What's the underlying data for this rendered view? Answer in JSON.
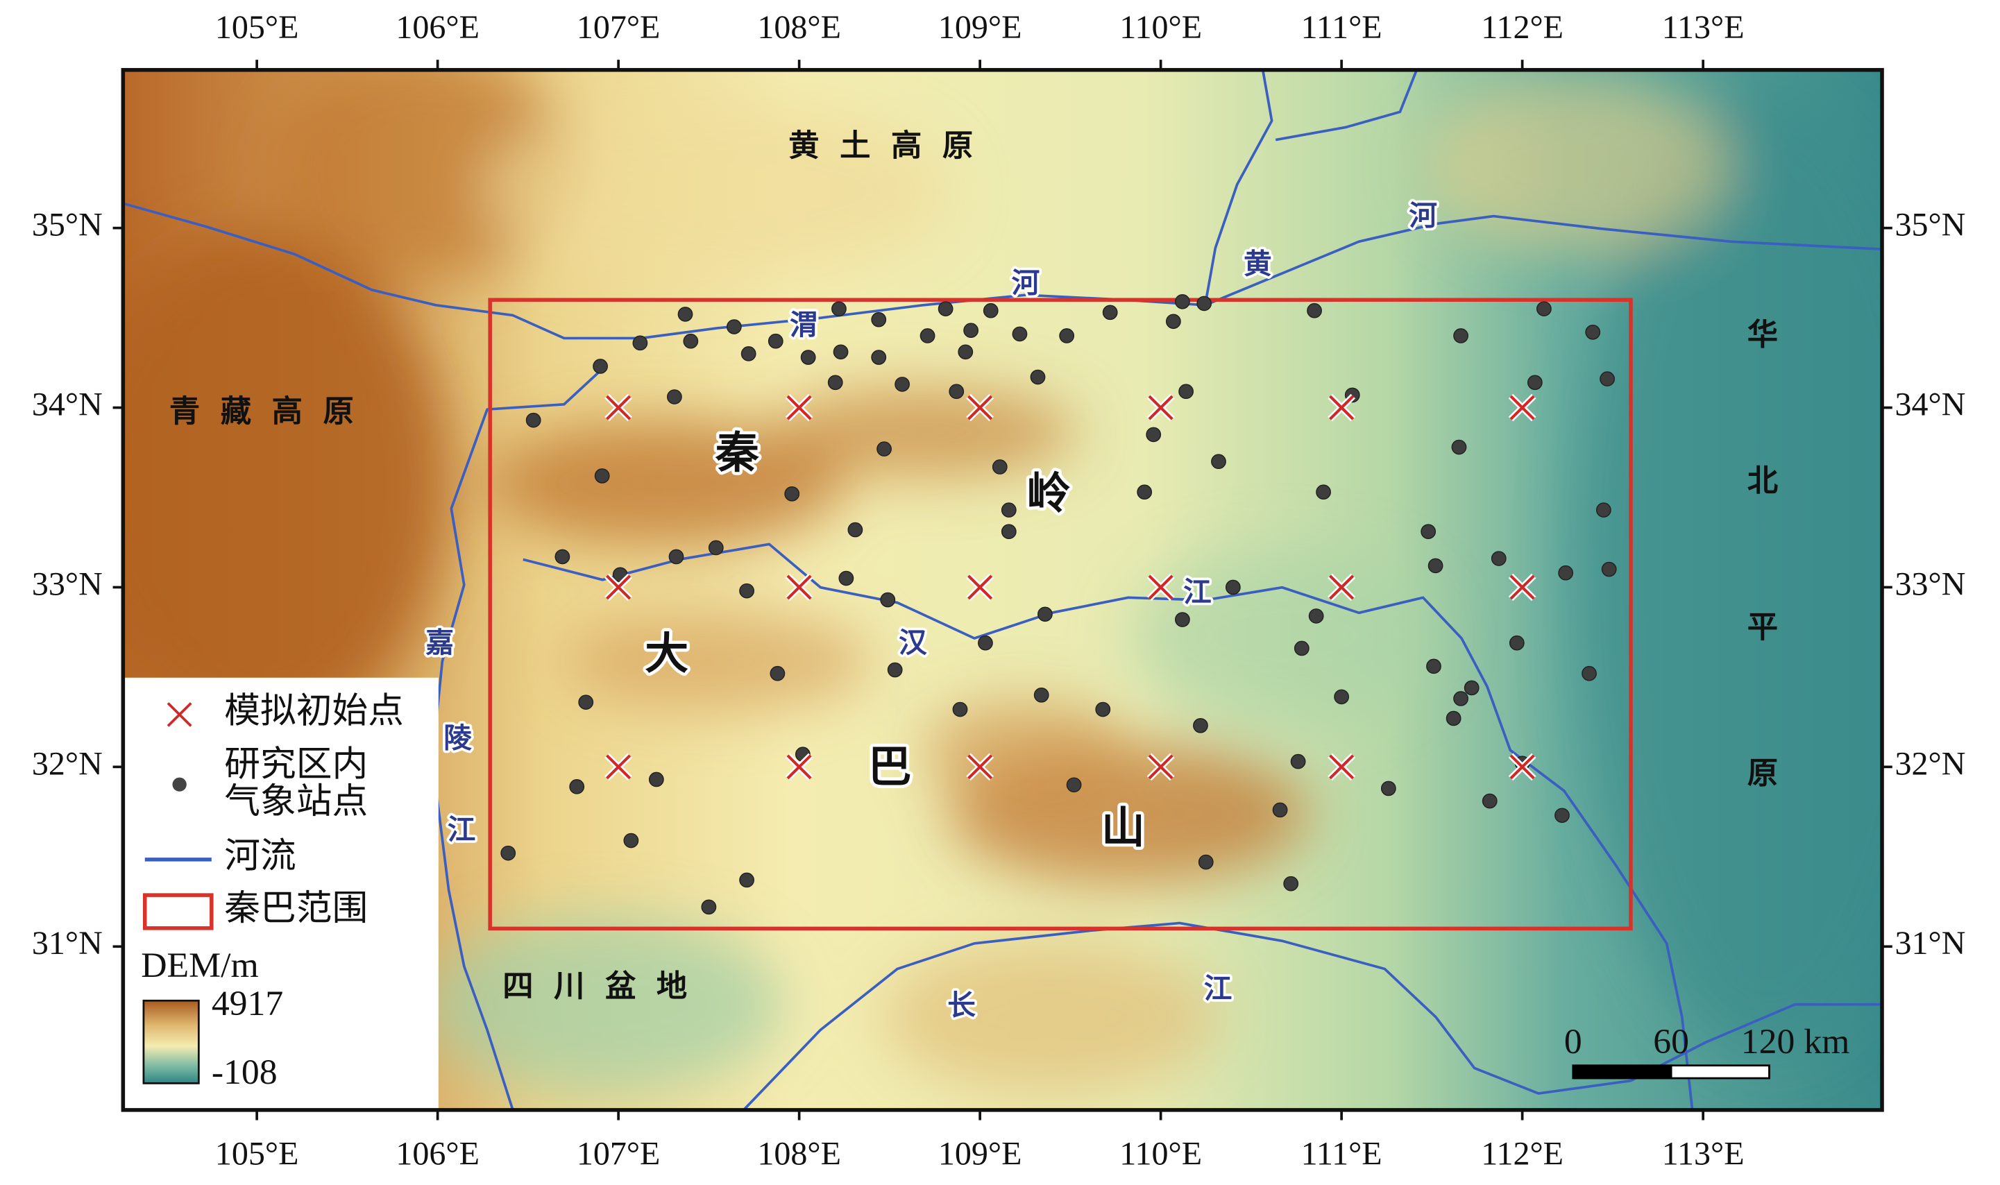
{
  "map": {
    "xlim": [
      104.26,
      113.99
    ],
    "ylim": [
      30.09,
      35.88
    ],
    "xticks": [
      {
        "value": 105,
        "label": "105°E"
      },
      {
        "value": 106,
        "label": "106°E"
      },
      {
        "value": 107,
        "label": "107°E"
      },
      {
        "value": 108,
        "label": "108°E"
      },
      {
        "value": 109,
        "label": "109°E"
      },
      {
        "value": 110,
        "label": "110°E"
      },
      {
        "value": 111,
        "label": "111°E"
      },
      {
        "value": 112,
        "label": "112°E"
      },
      {
        "value": 113,
        "label": "113°E"
      }
    ],
    "yticks": [
      {
        "value": 31,
        "label": "31°N"
      },
      {
        "value": 32,
        "label": "32°N"
      },
      {
        "value": 33,
        "label": "33°N"
      },
      {
        "value": 34,
        "label": "34°N"
      },
      {
        "value": 35,
        "label": "35°N"
      }
    ],
    "qinba_extent": {
      "west": 106.29,
      "east": 112.6,
      "south": 31.1,
      "north": 34.6
    },
    "sim_points": [
      [
        107,
        34
      ],
      [
        108,
        34
      ],
      [
        109,
        34
      ],
      [
        110,
        34
      ],
      [
        111,
        34
      ],
      [
        112,
        34
      ],
      [
        107,
        33
      ],
      [
        108,
        33
      ],
      [
        109,
        33
      ],
      [
        110,
        33
      ],
      [
        111,
        33
      ],
      [
        112,
        33
      ],
      [
        107,
        32
      ],
      [
        108,
        32
      ],
      [
        109,
        32
      ],
      [
        110,
        32
      ],
      [
        111,
        32
      ],
      [
        112,
        32
      ]
    ],
    "stations": [
      [
        107.37,
        34.52
      ],
      [
        107.64,
        34.45
      ],
      [
        108.22,
        34.55
      ],
      [
        108.44,
        34.49
      ],
      [
        108.81,
        34.55
      ],
      [
        109.06,
        34.54
      ],
      [
        109.72,
        34.53
      ],
      [
        110.12,
        34.59
      ],
      [
        110.24,
        34.58
      ],
      [
        110.85,
        34.54
      ],
      [
        112.12,
        34.55
      ],
      [
        112.39,
        34.42
      ],
      [
        112.47,
        34.16
      ],
      [
        111.66,
        34.4
      ],
      [
        112.07,
        34.14
      ],
      [
        111.06,
        34.07
      ],
      [
        110.14,
        34.09
      ],
      [
        110.07,
        34.48
      ],
      [
        109.48,
        34.4
      ],
      [
        109.22,
        34.41
      ],
      [
        108.92,
        34.31
      ],
      [
        108.95,
        34.43
      ],
      [
        108.71,
        34.4
      ],
      [
        108.44,
        34.28
      ],
      [
        108.23,
        34.31
      ],
      [
        108.05,
        34.28
      ],
      [
        107.87,
        34.37
      ],
      [
        107.72,
        34.3
      ],
      [
        107.4,
        34.37
      ],
      [
        107.12,
        34.36
      ],
      [
        106.9,
        34.23
      ],
      [
        107.31,
        34.06
      ],
      [
        106.53,
        33.93
      ],
      [
        108.2,
        34.14
      ],
      [
        108.57,
        34.13
      ],
      [
        108.87,
        34.09
      ],
      [
        109.32,
        34.17
      ],
      [
        111.65,
        33.78
      ],
      [
        109.96,
        33.85
      ],
      [
        110.32,
        33.7
      ],
      [
        109.91,
        33.53
      ],
      [
        110.9,
        33.53
      ],
      [
        109.11,
        33.67
      ],
      [
        109.16,
        33.43
      ],
      [
        108.47,
        33.77
      ],
      [
        107.96,
        33.52
      ],
      [
        106.91,
        33.62
      ],
      [
        108.31,
        33.32
      ],
      [
        107.54,
        33.22
      ],
      [
        107.32,
        33.17
      ],
      [
        106.69,
        33.17
      ],
      [
        107.01,
        33.07
      ],
      [
        107.71,
        32.98
      ],
      [
        108.26,
        33.05
      ],
      [
        108.49,
        32.93
      ],
      [
        109.16,
        33.31
      ],
      [
        109.36,
        32.85
      ],
      [
        110.4,
        33.0
      ],
      [
        110.12,
        32.82
      ],
      [
        110.86,
        32.84
      ],
      [
        110.78,
        32.66
      ],
      [
        111.48,
        33.31
      ],
      [
        111.52,
        33.12
      ],
      [
        111.87,
        33.16
      ],
      [
        112.24,
        33.08
      ],
      [
        112.48,
        33.1
      ],
      [
        112.45,
        33.43
      ],
      [
        111.97,
        32.69
      ],
      [
        111.51,
        32.56
      ],
      [
        112.37,
        32.52
      ],
      [
        111.72,
        32.44
      ],
      [
        111.66,
        32.38
      ],
      [
        111.62,
        32.27
      ],
      [
        111.0,
        32.39
      ],
      [
        110.22,
        32.23
      ],
      [
        109.68,
        32.32
      ],
      [
        109.34,
        32.4
      ],
      [
        108.89,
        32.32
      ],
      [
        108.53,
        32.54
      ],
      [
        107.88,
        32.52
      ],
      [
        109.03,
        32.69
      ],
      [
        106.82,
        32.36
      ],
      [
        106.77,
        31.89
      ],
      [
        107.21,
        31.93
      ],
      [
        108.02,
        32.07
      ],
      [
        109.52,
        31.9
      ],
      [
        110.76,
        32.03
      ],
      [
        111.26,
        31.88
      ],
      [
        111.82,
        31.81
      ],
      [
        112.22,
        31.73
      ],
      [
        110.66,
        31.76
      ],
      [
        107.07,
        31.59
      ],
      [
        106.39,
        31.52
      ],
      [
        107.71,
        31.37
      ],
      [
        107.5,
        31.22
      ],
      [
        110.25,
        31.47
      ],
      [
        110.72,
        31.35
      ],
      [
        112.0,
        32.02
      ]
    ],
    "regions": [
      "黄土高原",
      "青藏高原",
      "四川盆地",
      "华北平原"
    ],
    "mountains": [
      "秦",
      "岭",
      "大",
      "巴",
      "山"
    ],
    "rivers": [
      "渭",
      "河",
      "黄",
      "河",
      "嘉",
      "陵",
      "江",
      "汉",
      "江",
      "长",
      "江"
    ],
    "legend": {
      "sim_points": "模拟初始点",
      "stations": [
        "研究区内",
        "气象站点"
      ],
      "rivers": "河流",
      "extent": "秦巴范围",
      "dem_title": "DEM/m",
      "dem_max": 4917,
      "dem_min": -108
    },
    "scalebar": {
      "ticks": [
        0,
        60,
        {
          "value": 120,
          "label": "120 km"
        }
      ]
    }
  }
}
